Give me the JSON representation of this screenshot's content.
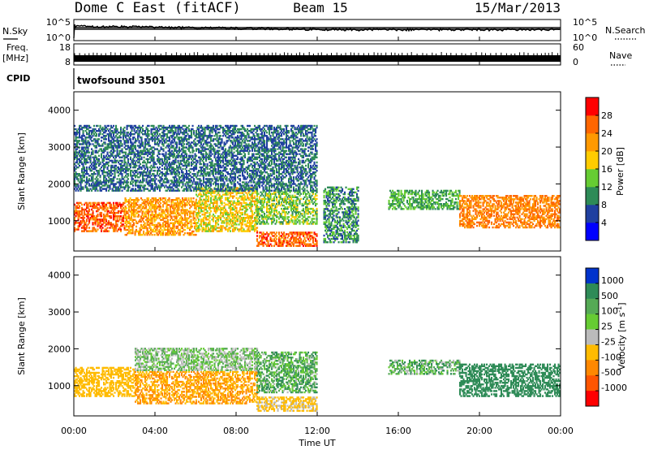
{
  "header": {
    "station": "Dome C East (fitACF)",
    "beam": "Beam 15",
    "date": "15/Mar/2013"
  },
  "aux_panels": {
    "nsky_label": "N.Sky",
    "nsky_ticks": [
      "10^5",
      "10^0"
    ],
    "nsearch_label": "N.Search",
    "nsearch_ticks": [
      "10^5",
      "10^0"
    ],
    "freq_label": "Freq.",
    "freq_unit": "[MHz]",
    "freq_ticks": [
      "18",
      "8"
    ],
    "nave_label": "Nave",
    "nave_ticks": [
      "60",
      "0"
    ],
    "cpid_label": "CPID",
    "cpid_value": "twofsound 3501"
  },
  "chart_data": [
    {
      "type": "heatmap",
      "panel": "power",
      "ylabel": "Slant Range [km]",
      "xlabel": "",
      "y_ticks": [
        "4000",
        "3000",
        "2000",
        "1000"
      ],
      "ylim": [
        180,
        4500
      ],
      "x_ticks": [
        "00:00",
        "04:00",
        "08:00",
        "12:00",
        "16:00",
        "20:00",
        "00:00"
      ],
      "xlim_hours": [
        0,
        24
      ],
      "colorbar": {
        "label": "Power [dB]",
        "ticks": [
          "28",
          "24",
          "20",
          "16",
          "12",
          "8",
          "4"
        ],
        "values": [
          28,
          24,
          20,
          16,
          12,
          8,
          4
        ],
        "range": [
          0,
          32
        ],
        "colors": [
          "#0000ff",
          "#2040a0",
          "#2e8b57",
          "#66cc33",
          "#ffcc00",
          "#ff9900",
          "#ff6600",
          "#ff0000"
        ]
      },
      "data_bands": [
        {
          "t0": 0.0,
          "t1": 2.5,
          "r0": 700,
          "r1": 1500,
          "value": 26
        },
        {
          "t0": 2.5,
          "t1": 6.0,
          "r0": 600,
          "r1": 1600,
          "value": 22
        },
        {
          "t0": 6.0,
          "t1": 9.0,
          "r0": 700,
          "r1": 1900,
          "value": 18
        },
        {
          "t0": 9.0,
          "t1": 12.0,
          "r0": 900,
          "r1": 1800,
          "value": 14
        },
        {
          "t0": 9.0,
          "t1": 12.0,
          "r0": 300,
          "r1": 700,
          "value": 26
        },
        {
          "t0": 12.3,
          "t1": 14.0,
          "r0": 400,
          "r1": 1900,
          "value": 10
        },
        {
          "t0": 15.5,
          "t1": 19.0,
          "r0": 1300,
          "r1": 1800,
          "value": 12
        },
        {
          "t0": 19.0,
          "t1": 24.0,
          "r0": 800,
          "r1": 1700,
          "value": 24
        },
        {
          "t0": 0.0,
          "t1": 12.0,
          "r0": 1800,
          "r1": 3600,
          "value": 8
        }
      ]
    },
    {
      "type": "heatmap",
      "panel": "velocity",
      "ylabel": "Slant Range [km]",
      "xlabel": "Time UT",
      "y_ticks": [
        "4000",
        "3000",
        "2000",
        "1000"
      ],
      "ylim": [
        180,
        4500
      ],
      "x_ticks": [
        "00:00",
        "04:00",
        "08:00",
        "12:00",
        "16:00",
        "20:00",
        "00:00"
      ],
      "xlim_hours": [
        0,
        24
      ],
      "colorbar": {
        "label": "Velocity [m s^-1]",
        "ticks": [
          "1000",
          "500",
          "100",
          "25",
          "-25",
          "-100",
          "-500",
          "-1000"
        ],
        "colors": [
          "#0033cc",
          "#2e8b57",
          "#55aa55",
          "#66cc33",
          "#bbbbbb",
          "#ffbb00",
          "#ff8800",
          "#ff5500",
          "#ff0000"
        ]
      },
      "data_bands": [
        {
          "t0": 0.0,
          "t1": 3.0,
          "r0": 700,
          "r1": 1500,
          "value": -200
        },
        {
          "t0": 3.0,
          "t1": 9.0,
          "r0": 500,
          "r1": 1400,
          "value": -300
        },
        {
          "t0": 3.0,
          "t1": 9.0,
          "r0": 1400,
          "r1": 2000,
          "value": 0
        },
        {
          "t0": 9.0,
          "t1": 12.0,
          "r0": 800,
          "r1": 1900,
          "value": 60
        },
        {
          "t0": 9.0,
          "t1": 12.0,
          "r0": 300,
          "r1": 700,
          "value": -150
        },
        {
          "t0": 15.5,
          "t1": 19.0,
          "r0": 1300,
          "r1": 1700,
          "value": 50
        },
        {
          "t0": 19.0,
          "t1": 24.0,
          "r0": 700,
          "r1": 1600,
          "value": 300
        }
      ]
    }
  ]
}
